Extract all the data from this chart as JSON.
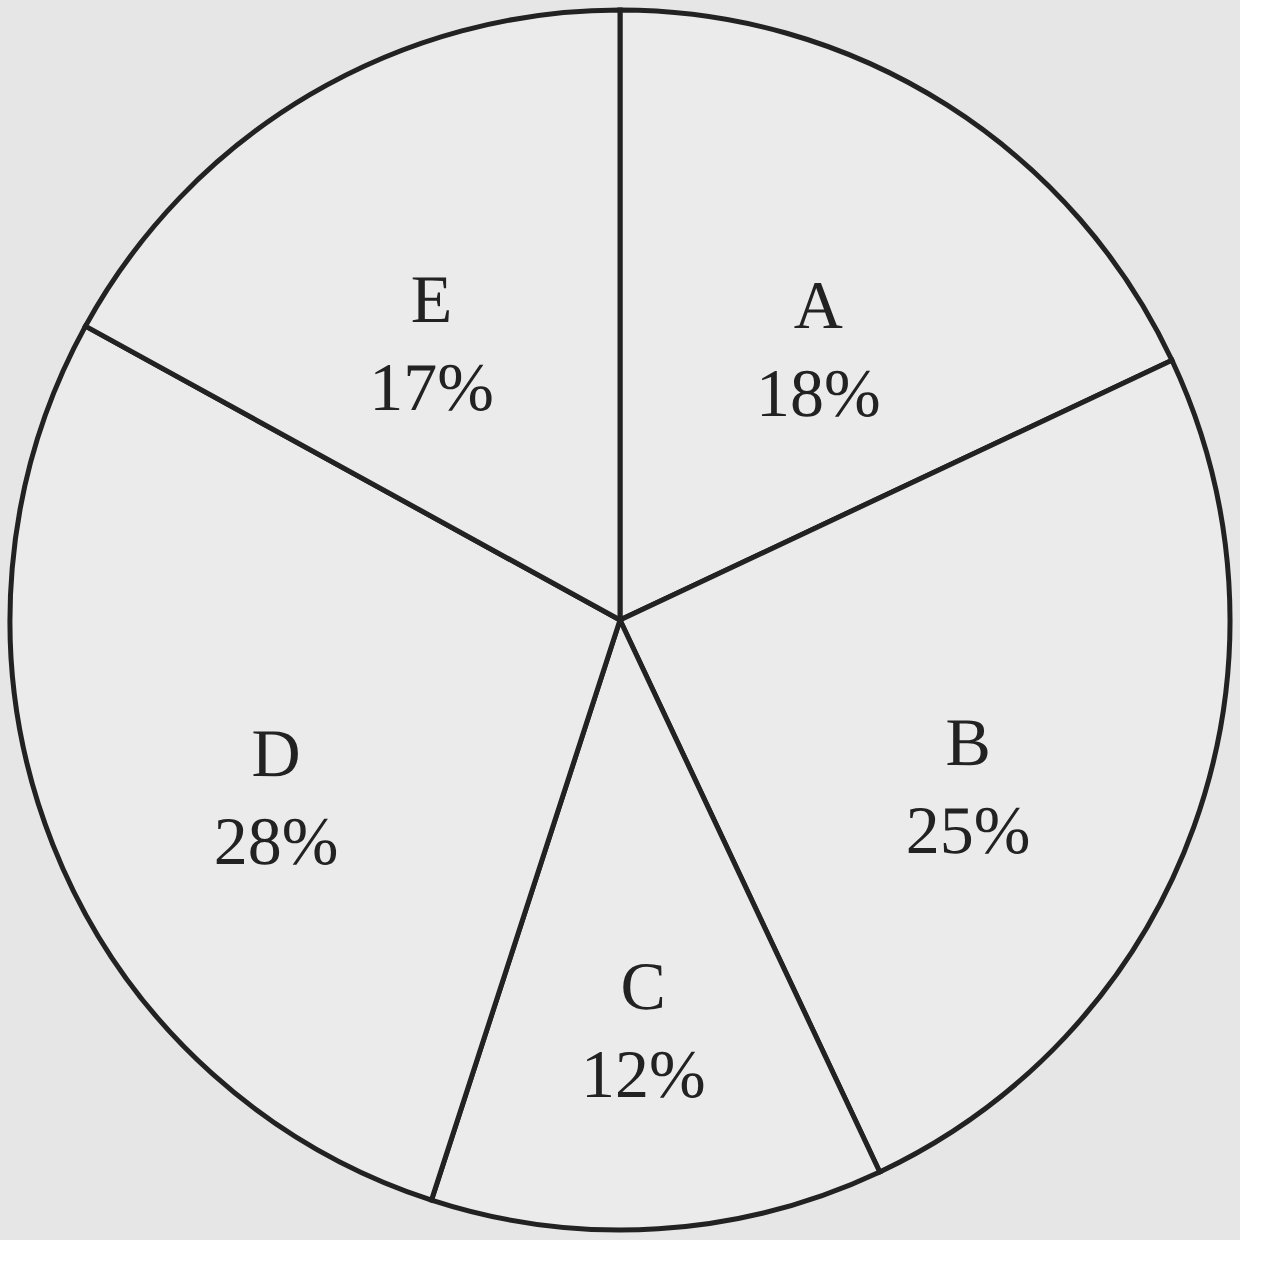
{
  "chart_data": {
    "type": "pie",
    "categories": [
      "A",
      "B",
      "C",
      "D",
      "E"
    ],
    "values": [
      18,
      25,
      12,
      28,
      17
    ],
    "value_labels": [
      "18%",
      "25%",
      "12%",
      "28%",
      "17%"
    ],
    "colors": [
      "#ebebeb",
      "#ebebeb",
      "#ebebeb",
      "#ebebeb",
      "#ebebeb"
    ],
    "legend": false
  }
}
